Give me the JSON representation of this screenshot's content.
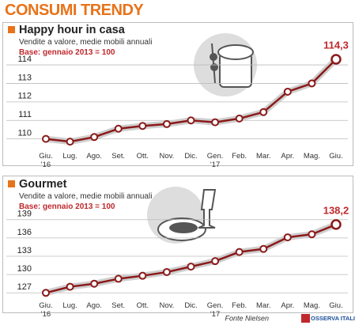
{
  "header": {
    "title": "CONSUMI TRENDY"
  },
  "footer": {
    "source": "Fonte Nielsen",
    "logo": "OSSERVA ITALIA"
  },
  "chart_data": [
    {
      "type": "line",
      "title": "Happy hour in casa",
      "subtitle": "Vendite a valore, medie mobili annuali",
      "note": "Base: gennaio 2013 = 100",
      "categories": [
        "Giu.\n'16",
        "Lug.",
        "Ago.",
        "Set.",
        "Ott.",
        "Nov.",
        "Dic.",
        "Gen.\n'17",
        "Feb.",
        "Mar.",
        "Apr.",
        "Mag.",
        "Giu."
      ],
      "values": [
        110.0,
        109.85,
        110.1,
        110.55,
        110.7,
        110.8,
        111.0,
        110.9,
        111.1,
        111.45,
        112.55,
        113.0,
        114.3
      ],
      "value_labels": [
        null,
        null,
        null,
        null,
        null,
        null,
        null,
        null,
        null,
        null,
        null,
        null,
        "114,3"
      ],
      "color": "#8b1a1a",
      "ylim": [
        109.6,
        114.6
      ],
      "yticks": [
        110,
        111,
        112,
        113,
        114
      ],
      "grid": true
    },
    {
      "type": "line",
      "title": "Gourmet",
      "subtitle": "Vendite a valore, medie mobili annuali",
      "note": "Base: gennaio 2013 = 100",
      "categories": [
        "Giu.\n'16",
        "Lug.",
        "Ago.",
        "Set.",
        "Ott.",
        "Nov.",
        "Dic.",
        "Gen.\n'17",
        "Feb.",
        "Mar.",
        "Apr.",
        "Mag.",
        "Giu."
      ],
      "values": [
        127.0,
        128.0,
        128.5,
        129.3,
        129.8,
        130.4,
        131.3,
        132.2,
        133.7,
        134.2,
        136.1,
        136.6,
        138.2
      ],
      "value_labels": [
        null,
        null,
        null,
        null,
        null,
        null,
        null,
        null,
        null,
        null,
        null,
        null,
        "138,2"
      ],
      "color": "#8b1a1a",
      "ylim": [
        126,
        140
      ],
      "yticks": [
        127,
        130,
        133,
        136,
        139
      ],
      "grid": true
    }
  ]
}
